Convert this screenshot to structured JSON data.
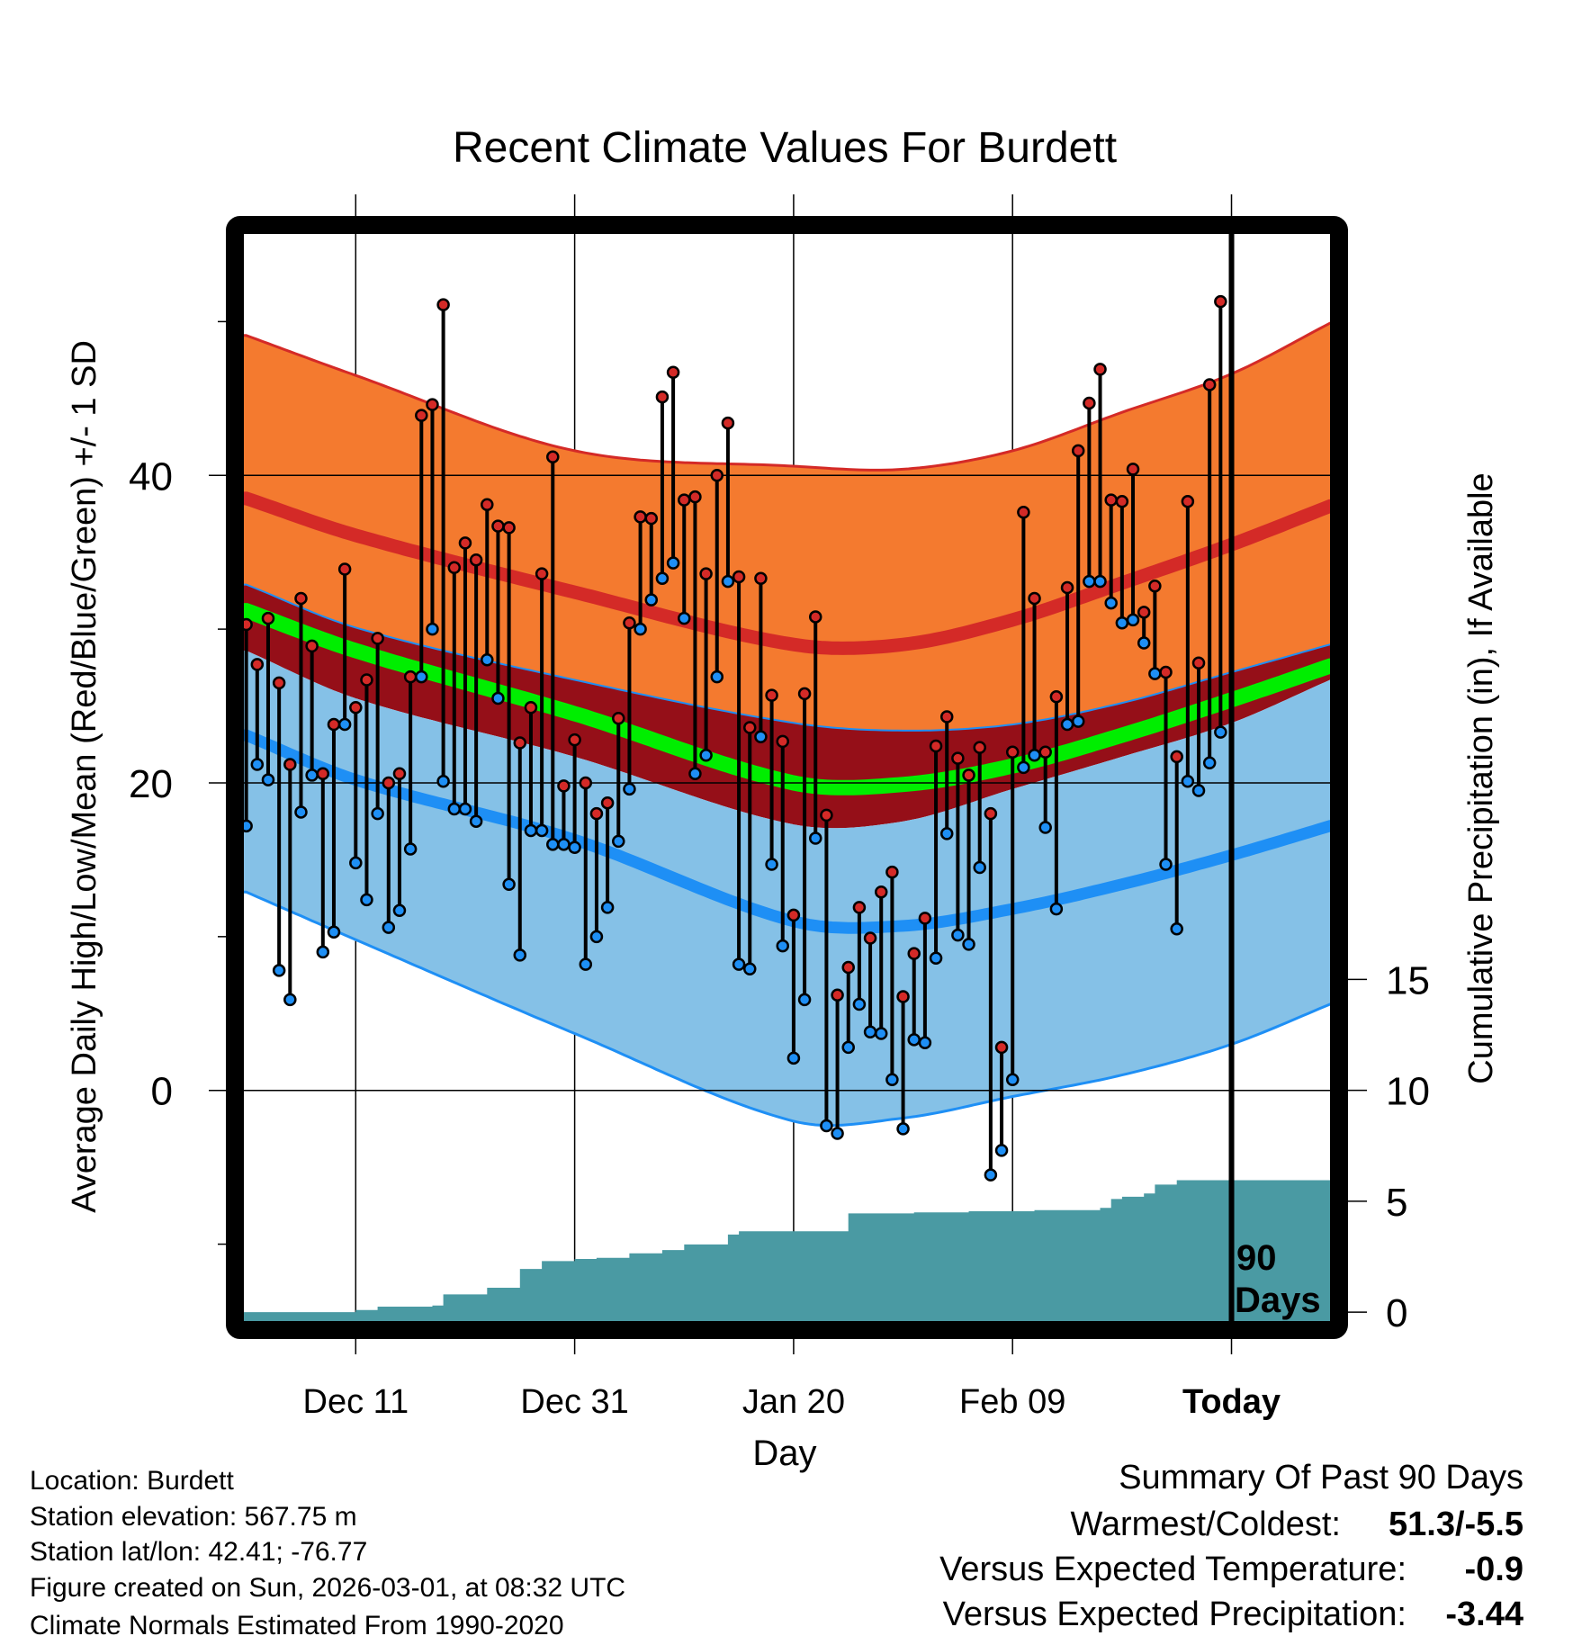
{
  "chart_data": {
    "type": "line",
    "title": "Recent Climate Values For Burdett",
    "xlabel": "Day",
    "ylabel": "Average Daily High/Low/Mean (Red/Blue/Green) +/- 1 SD",
    "y2label": "Cumulative Precipitation (in), If Available",
    "xlim_days": [
      -90.3,
      9
    ],
    "ylim": [
      -15,
      55.7
    ],
    "y2lim": [
      -0.4,
      48.6
    ],
    "x_ticks": [
      {
        "day": -80,
        "label": "Dec 11"
      },
      {
        "day": -60,
        "label": "Dec 31"
      },
      {
        "day": -40,
        "label": "Jan 20"
      },
      {
        "day": -20,
        "label": "Feb 09"
      },
      {
        "day": 0,
        "label": "Today"
      }
    ],
    "y_ticks": [
      {
        "value": 0,
        "label": "0"
      },
      {
        "value": 20,
        "label": "20"
      },
      {
        "value": 40,
        "label": "40"
      }
    ],
    "y_minor_ticks": [
      -10,
      10,
      30,
      50
    ],
    "y2_ticks": [
      {
        "value": 0,
        "label": "0"
      },
      {
        "value": 5,
        "label": "5"
      },
      {
        "value": 10,
        "label": "10"
      },
      {
        "value": 15,
        "label": "15"
      }
    ],
    "today_annotation": [
      "90",
      "Days"
    ],
    "normals": {
      "days": [
        -90,
        -80,
        -60,
        -40,
        -30,
        -20,
        -10,
        0,
        9
      ],
      "high_plus_sd": [
        49.1,
        46.5,
        41.6,
        40.6,
        40.4,
        41.6,
        44.1,
        46.6,
        49.9
      ],
      "mean_high": [
        38.5,
        36.1,
        32.4,
        29.0,
        29.0,
        30.6,
        33.0,
        35.5,
        38.0
      ],
      "high_minus_sd": [
        32.9,
        30.1,
        26.7,
        23.9,
        23.4,
        23.8,
        25.2,
        27.2,
        29.0
      ],
      "mean": [
        31.2,
        28.6,
        24.5,
        20.0,
        19.9,
        21.1,
        23.1,
        25.4,
        27.6
      ],
      "low_plus_sd": [
        28.6,
        25.5,
        21.7,
        17.3,
        17.5,
        19.6,
        21.7,
        23.9,
        26.7
      ],
      "mean_low": [
        23.1,
        20.2,
        16.3,
        11.0,
        10.7,
        11.8,
        13.4,
        15.3,
        17.2
      ],
      "low_minus_sd": [
        12.9,
        9.8,
        3.7,
        -2.0,
        -1.8,
        -0.4,
        1.0,
        3.0,
        5.6
      ]
    },
    "daily": {
      "start_day": -90,
      "high": [
        30.3,
        27.7,
        30.7,
        26.5,
        21.2,
        32.0,
        28.9,
        20.6,
        23.8,
        33.9,
        24.9,
        26.7,
        29.4,
        20.0,
        20.6,
        26.9,
        43.9,
        44.6,
        51.1,
        34.0,
        35.6,
        34.5,
        38.1,
        36.7,
        36.6,
        22.6,
        24.9,
        33.6,
        41.2,
        19.8,
        22.8,
        20.0,
        18.0,
        18.7,
        24.2,
        30.4,
        37.3,
        37.2,
        45.1,
        46.7,
        38.4,
        38.6,
        33.6,
        40.0,
        43.4,
        33.4,
        23.6,
        33.3,
        25.7,
        22.7,
        11.4,
        25.8,
        30.8,
        17.9,
        6.2,
        8.0,
        11.9,
        9.9,
        12.9,
        14.2,
        6.1,
        8.9,
        11.2,
        22.4,
        24.3,
        21.6,
        20.5,
        22.3,
        18.0,
        2.8,
        22.0,
        37.6,
        32.0,
        22.0,
        25.6,
        32.7,
        41.6,
        44.7,
        46.9,
        38.4,
        38.3,
        40.4,
        31.1,
        32.8,
        27.2,
        21.7,
        38.3,
        27.8,
        45.9,
        51.3
      ],
      "low": [
        17.2,
        21.2,
        20.2,
        7.8,
        5.9,
        18.1,
        20.5,
        9.0,
        10.3,
        23.8,
        14.8,
        12.4,
        18.0,
        10.6,
        11.7,
        15.7,
        26.9,
        30.0,
        20.1,
        18.3,
        18.3,
        17.5,
        28.0,
        25.5,
        13.4,
        8.8,
        16.9,
        16.9,
        16.0,
        16.0,
        15.8,
        8.2,
        10.0,
        11.9,
        16.2,
        19.6,
        30.0,
        31.9,
        33.3,
        34.3,
        30.7,
        20.6,
        21.8,
        26.9,
        33.1,
        8.2,
        7.9,
        23.0,
        14.7,
        9.4,
        2.1,
        5.9,
        16.4,
        -2.3,
        -2.8,
        2.8,
        5.6,
        3.8,
        3.7,
        0.7,
        -2.5,
        3.3,
        3.1,
        8.6,
        16.7,
        10.1,
        9.5,
        14.5,
        -5.5,
        -3.9,
        0.7,
        21.0,
        21.8,
        17.1,
        11.8,
        23.8,
        24.0,
        33.1,
        33.1,
        31.7,
        30.4,
        30.6,
        29.1,
        27.1,
        14.7,
        10.5,
        20.1,
        19.5,
        21.3,
        23.3
      ],
      "cumulative_precip": [
        0,
        0,
        0,
        0,
        0,
        0,
        0,
        0,
        0,
        0,
        0.1,
        0.1,
        0.25,
        0.25,
        0.25,
        0.25,
        0.25,
        0.3,
        0.8,
        0.8,
        0.8,
        0.8,
        1.1,
        1.1,
        1.1,
        1.95,
        1.95,
        2.3,
        2.3,
        2.3,
        2.4,
        2.4,
        2.45,
        2.45,
        2.45,
        2.65,
        2.65,
        2.65,
        2.8,
        2.8,
        3.05,
        3.05,
        3.05,
        3.05,
        3.5,
        3.65,
        3.65,
        3.65,
        3.65,
        3.65,
        3.65,
        3.65,
        3.65,
        3.65,
        3.65,
        4.45,
        4.45,
        4.45,
        4.45,
        4.45,
        4.45,
        4.5,
        4.5,
        4.5,
        4.5,
        4.5,
        4.55,
        4.55,
        4.55,
        4.55,
        4.55,
        4.55,
        4.6,
        4.6,
        4.6,
        4.6,
        4.6,
        4.6,
        4.7,
        5.1,
        5.2,
        5.2,
        5.35,
        5.75,
        5.75,
        5.95,
        5.95,
        5.95,
        5.95,
        5.95
      ]
    }
  },
  "colors": {
    "high_band": "#f47a2f",
    "high_line": "#d42a27",
    "mid_band": "#950f18",
    "mean_line": "#00ee00",
    "low_band": "#85c1e7",
    "low_line": "#1e8ff5",
    "precip": "#4a9aa3",
    "high_dot": "#d42a27",
    "low_dot": "#1e8ff5",
    "warm_cold_value": "#000000",
    "temp_value": "#1e8ff5",
    "precip_value": "#a0522d"
  },
  "info": {
    "location": "Location: Burdett",
    "elevation": "Station elevation: 567.75 m",
    "latlon": "Station lat/lon: 42.41; -76.77",
    "created": "Figure created on Sun, 2026-03-01, at 08:32 UTC",
    "normals": "Climate Normals Estimated From 1990-2020"
  },
  "summary": {
    "title": "Summary Of Past 90 Days",
    "warmest_label": "Warmest/Coldest:",
    "warmest_value": "51.3/-5.5",
    "temp_label": "Versus Expected Temperature:",
    "temp_value": "-0.9",
    "precip_label": "Versus Expected Precipitation:",
    "precip_value": "-3.44"
  }
}
